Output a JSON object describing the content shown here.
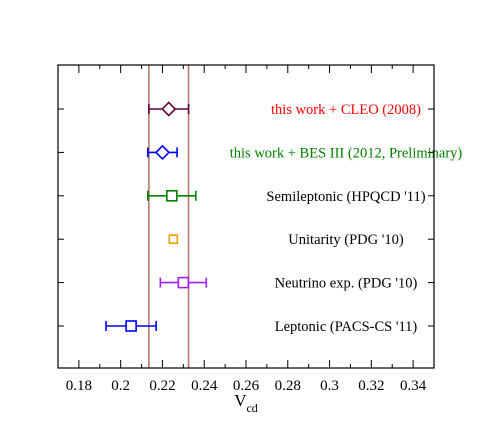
{
  "chart_data": {
    "type": "scatter",
    "title": "",
    "xlabel": "V",
    "xlabel_subscript": "cd",
    "ylabel": "",
    "xlim": [
      0.17,
      0.35
    ],
    "xticks": [
      "0.18",
      "0.2",
      "0.22",
      "0.24",
      "0.26",
      "0.28",
      "0.3",
      "0.32",
      "0.34"
    ],
    "xtick_values": [
      0.18,
      0.2,
      0.22,
      0.24,
      0.26,
      0.28,
      0.3,
      0.32,
      0.34
    ],
    "grid": false,
    "band": {
      "low": 0.2135,
      "high": 0.2325,
      "color": "#b07a72"
    },
    "points": [
      {
        "label": "this work + CLEO (2008)",
        "value": 0.223,
        "err_low": 0.2135,
        "err_high": 0.2325,
        "marker": "diamond",
        "color": "#660033",
        "label_color": "#ff0000"
      },
      {
        "label": "this work + BES III (2012, Preliminary)",
        "value": 0.22,
        "err_low": 0.213,
        "err_high": 0.227,
        "marker": "diamond",
        "color": "#0000ff",
        "label_color": "#008000"
      },
      {
        "label": "Semileptonic (HPQCD '11)",
        "value": 0.2245,
        "err_low": 0.213,
        "err_high": 0.236,
        "marker": "square",
        "color": "#008000",
        "label_color": "#000000"
      },
      {
        "label": "Unitarity (PDG '10)",
        "value": 0.2252,
        "err_low": 0.2243,
        "err_high": 0.2261,
        "marker": "square",
        "color": "#f0a000",
        "label_color": "#000000"
      },
      {
        "label": "Neutrino exp. (PDG '10)",
        "value": 0.23,
        "err_low": 0.219,
        "err_high": 0.241,
        "marker": "square",
        "color": "#a020f0",
        "label_color": "#000000"
      },
      {
        "label": "Leptonic (PACS-CS '11)",
        "value": 0.205,
        "err_low": 0.193,
        "err_high": 0.217,
        "marker": "square",
        "color": "#0000ff",
        "label_color": "#000000"
      }
    ]
  }
}
